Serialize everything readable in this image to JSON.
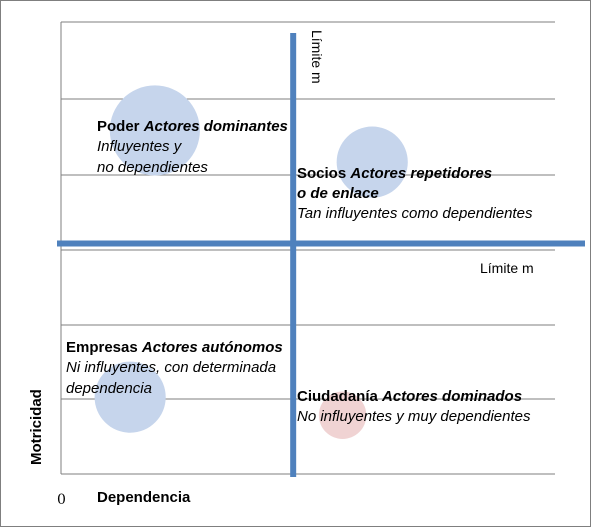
{
  "chart_data": {
    "type": "scatter",
    "title": "",
    "xlabel": "Dependencia",
    "ylabel": "Motricidad",
    "x_tick_labels": [
      "0"
    ],
    "xlim": [
      0,
      1
    ],
    "ylim": [
      0,
      1
    ],
    "grid": true,
    "limits": {
      "vertical_label": "Límite m",
      "horizontal_label": "Límite m",
      "x_value": 0.47,
      "y_value": 0.51
    },
    "points": [
      {
        "x": 0.19,
        "y": 0.76,
        "size": 0.19,
        "color": "#c6d5ec",
        "label": {
          "title": "Poder",
          "title_italic": "Actores dominantes",
          "lines": [
            "Influyentes y",
            "no dependientes"
          ]
        }
      },
      {
        "x": 0.63,
        "y": 0.69,
        "size": 0.15,
        "color": "#c6d5ec",
        "label": {
          "title": "Socios",
          "title_italic": "Actores repetidores",
          "title_italic_2": "o de enlace",
          "lines": [
            "Tan influyentes como dependientes"
          ]
        }
      },
      {
        "x": 0.14,
        "y": 0.17,
        "size": 0.15,
        "color": "#c6d5ec",
        "label": {
          "title": "Empresas",
          "title_italic": "Actores autónomos",
          "lines": [
            "Ni influyentes, con determinada",
            "dependencia"
          ]
        }
      },
      {
        "x": 0.57,
        "y": 0.13,
        "size": 0.1,
        "color": "#f0d3d3",
        "label": {
          "title": "Ciudadanía",
          "title_italic": "Actores dominados",
          "lines": [
            "No influyentes y muy dependientes"
          ]
        }
      }
    ]
  }
}
